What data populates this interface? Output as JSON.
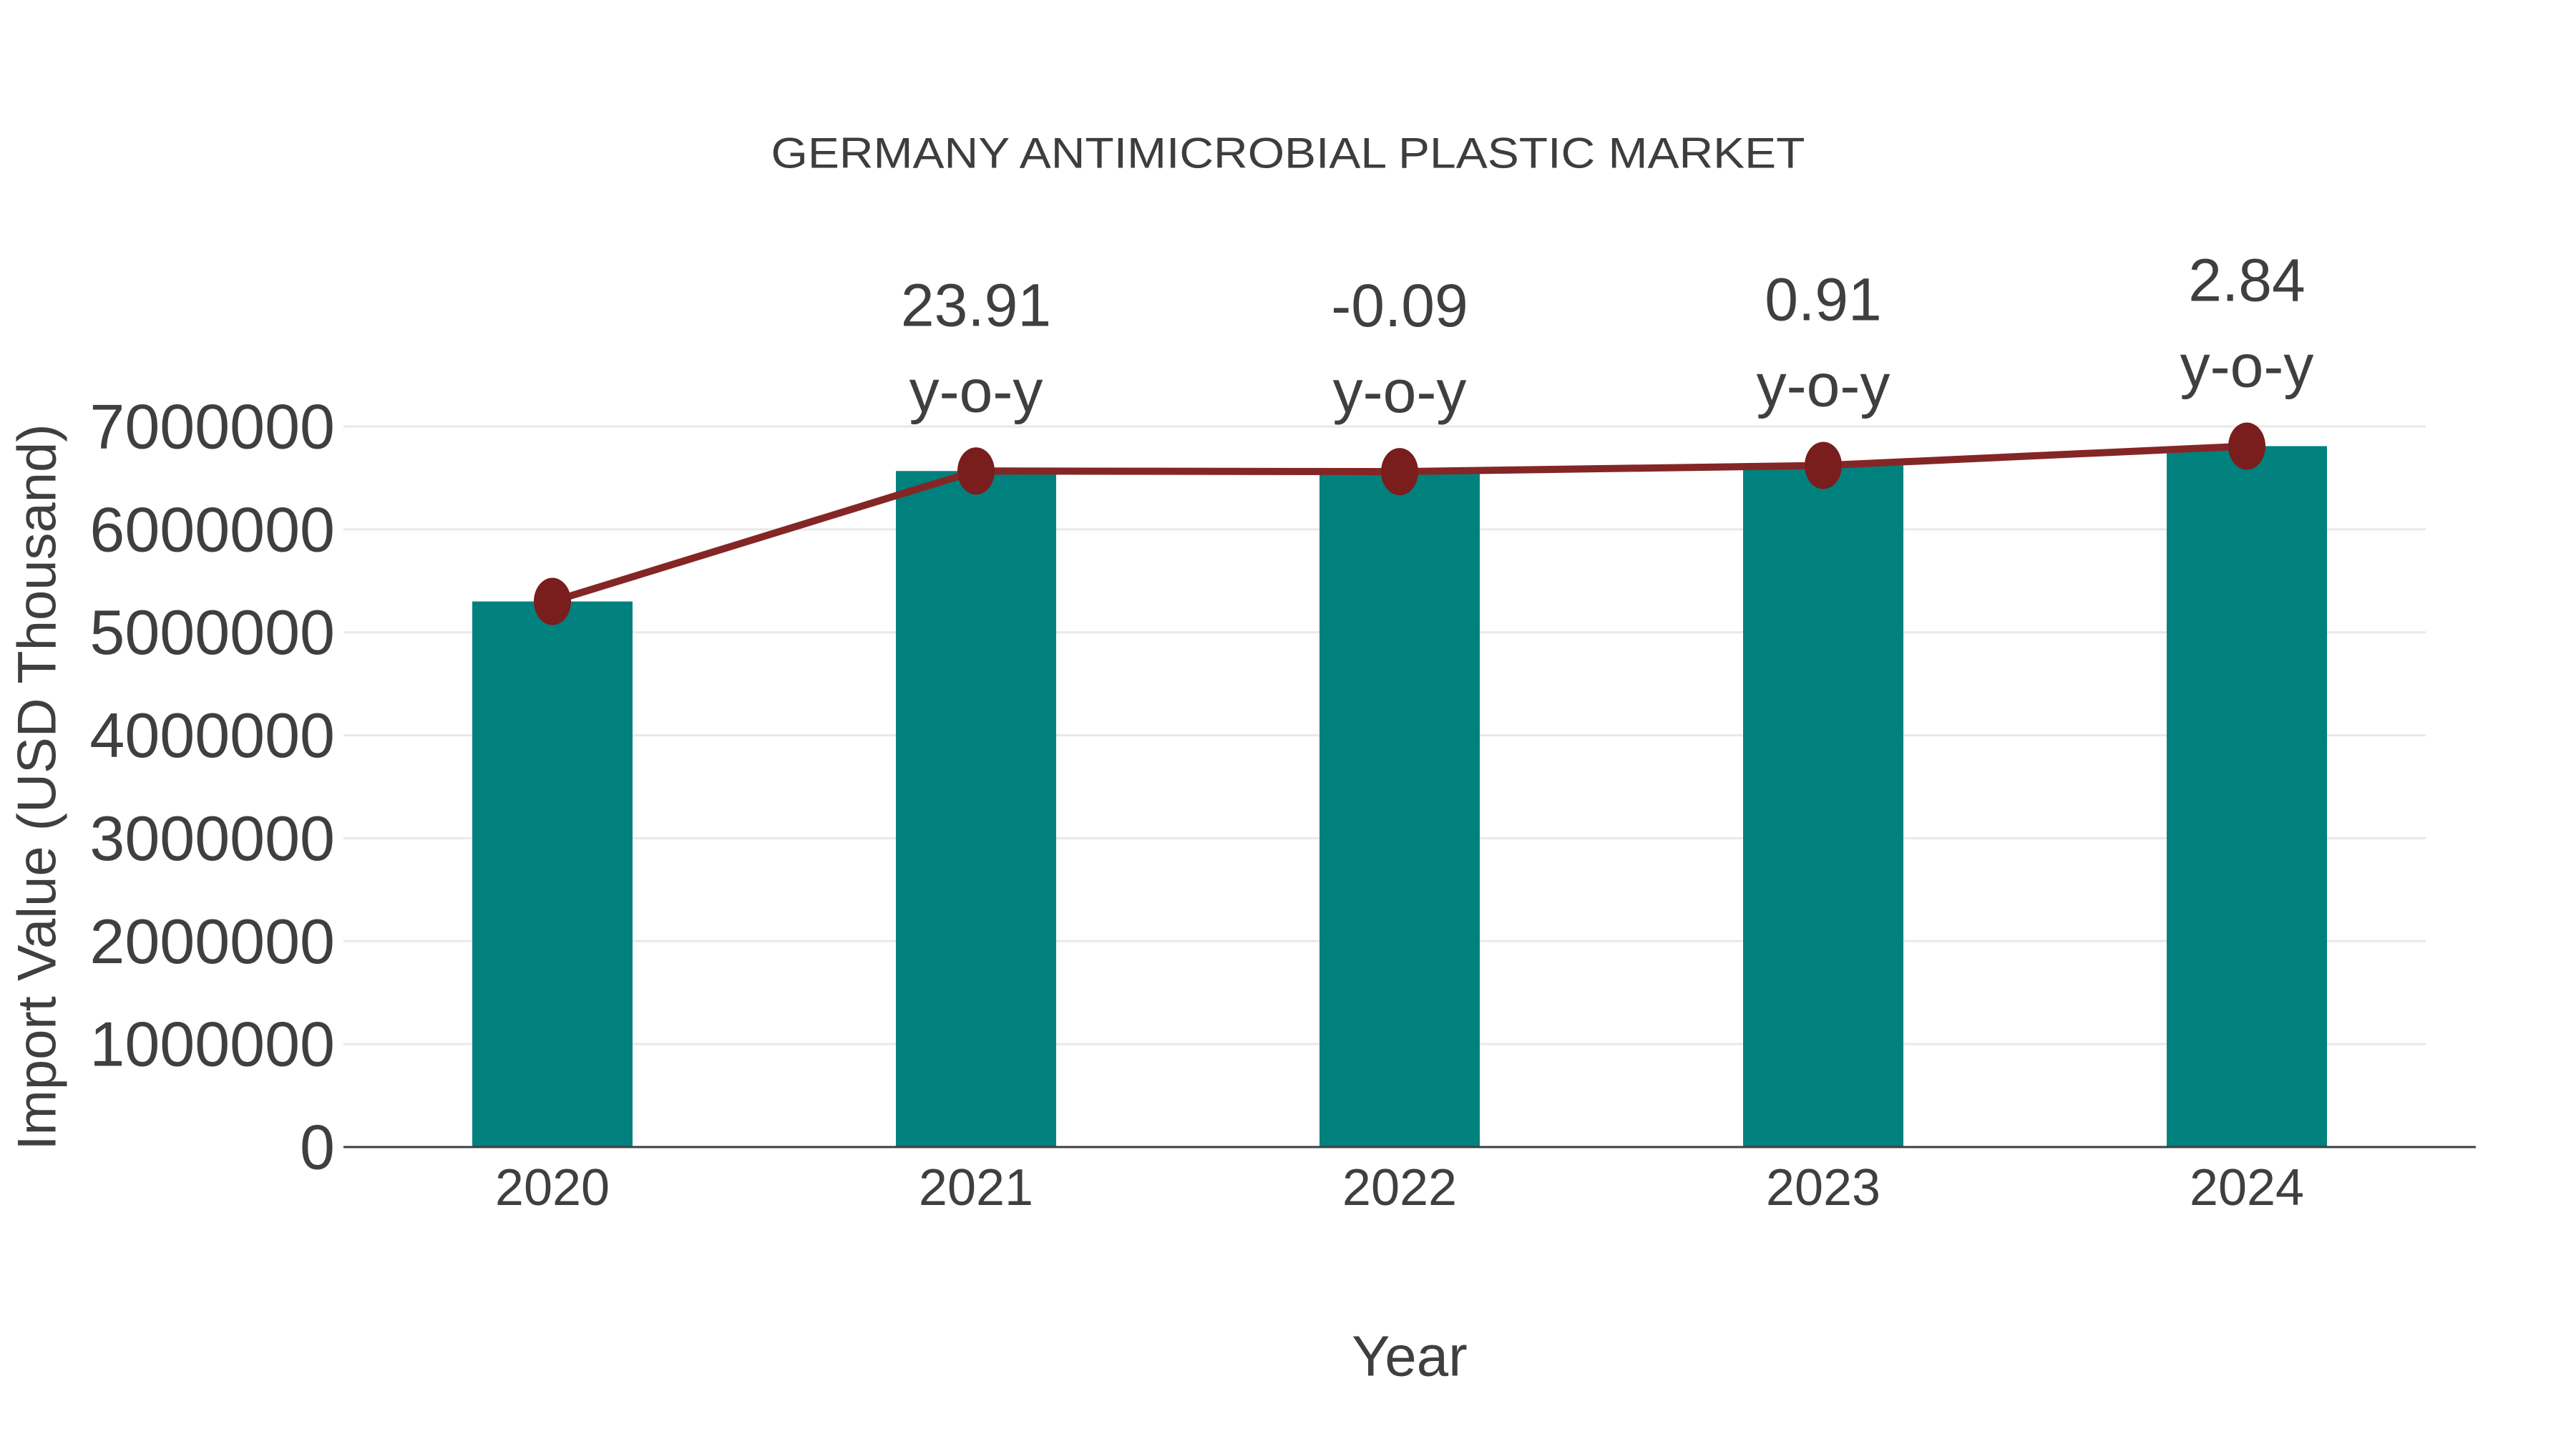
{
  "chart_data": {
    "type": "bar",
    "overlay": "line",
    "title": "GERMANY ANTIMICROBIAL PLASTIC MARKET",
    "xlabel": "Year",
    "ylabel": "Import Value (USD Thousand)",
    "categories": [
      "2020",
      "2021",
      "2022",
      "2023",
      "2024"
    ],
    "series": [
      {
        "name": "Import Value",
        "type": "bar",
        "values": [
          5300000,
          6567230,
          6561320,
          6621029,
          6809066
        ]
      },
      {
        "name": "Import Value trend",
        "type": "line",
        "values": [
          5300000,
          6567230,
          6561320,
          6621029,
          6809066
        ]
      }
    ],
    "annotations": [
      {
        "category": "2021",
        "line1": "23.91",
        "line2": "y-o-y"
      },
      {
        "category": "2022",
        "line1": "-0.09",
        "line2": "y-o-y"
      },
      {
        "category": "2023",
        "line1": "0.91",
        "line2": "y-o-y"
      },
      {
        "category": "2024",
        "line1": "2.84",
        "line2": "y-o-y"
      }
    ],
    "yticks": [
      0,
      1000000,
      2000000,
      3000000,
      4000000,
      5000000,
      6000000,
      7000000
    ],
    "ylim": [
      0,
      7000000
    ],
    "grid": true,
    "legend": "none",
    "colors": {
      "bar": "#00817e",
      "line": "#842626",
      "marker": "#7a1d1d",
      "text": "#3f3f3f",
      "grid": "#e8e8e8",
      "axis": "#3f3f3f"
    }
  }
}
